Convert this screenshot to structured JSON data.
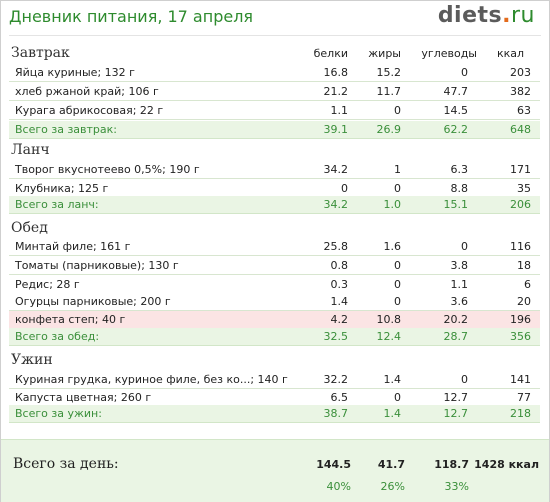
{
  "header": {
    "title": "Дневник питания, 17 апреля",
    "logo_main": "diets",
    "logo_dot": ".",
    "logo_tld": "ru"
  },
  "columns": {
    "protein": "белки",
    "fat": "жиры",
    "carbs": "углеводы",
    "kcal": "ккал"
  },
  "meals": [
    {
      "title": "Завтрак",
      "items": [
        {
          "name": "Яйца куриные; 132 г",
          "p": "16.8",
          "f": "15.2",
          "c": "0",
          "k": "203"
        },
        {
          "name": "хлеб ржаной край; 106 г",
          "p": "21.2",
          "f": "11.7",
          "c": "47.7",
          "k": "382"
        },
        {
          "name": "Курага абрикосовая; 22 г",
          "p": "1.1",
          "f": "0",
          "c": "14.5",
          "k": "63"
        }
      ],
      "total": {
        "name": "Всего за завтрак:",
        "p": "39.1",
        "f": "26.9",
        "c": "62.2",
        "k": "648"
      }
    },
    {
      "title": "Ланч",
      "items": [
        {
          "name": "Творог вкуснотеево 0,5%; 190 г",
          "p": "34.2",
          "f": "1",
          "c": "6.3",
          "k": "171"
        },
        {
          "name": "Клубника; 125 г",
          "p": "0",
          "f": "0",
          "c": "8.8",
          "k": "35"
        }
      ],
      "total": {
        "name": "Всего за ланч:",
        "p": "34.2",
        "f": "1.0",
        "c": "15.1",
        "k": "206"
      }
    },
    {
      "title": "Обед",
      "items": [
        {
          "name": "Минтай филе; 161 г",
          "p": "25.8",
          "f": "1.6",
          "c": "0",
          "k": "116"
        },
        {
          "name": "Томаты (парниковые); 130 г",
          "p": "0.8",
          "f": "0",
          "c": "3.8",
          "k": "18"
        },
        {
          "name": "Редис; 28 г",
          "p": "0.3",
          "f": "0",
          "c": "1.1",
          "k": "6"
        },
        {
          "name": "Огурцы парниковые; 200 г",
          "p": "1.4",
          "f": "0",
          "c": "3.6",
          "k": "20"
        },
        {
          "name": "конфета степ; 40 г",
          "p": "4.2",
          "f": "10.8",
          "c": "20.2",
          "k": "196"
        }
      ],
      "total": {
        "name": "Всего за обед:",
        "p": "32.5",
        "f": "12.4",
        "c": "28.7",
        "k": "356"
      }
    },
    {
      "title": "Ужин",
      "items": [
        {
          "name": "Куриная грудка, куриное филе, без ко...; 140 г",
          "p": "32.2",
          "f": "1.4",
          "c": "0",
          "k": "141"
        },
        {
          "name": "Капуста цветная; 260 г",
          "p": "6.5",
          "f": "0",
          "c": "12.7",
          "k": "77"
        }
      ],
      "total": {
        "name": "Всего за ужин:",
        "p": "38.7",
        "f": "1.4",
        "c": "12.7",
        "k": "218"
      }
    }
  ],
  "day": {
    "label": "Всего за день:",
    "p": "144.5",
    "f": "41.7",
    "c": "118.7",
    "k": "1428 ккал",
    "pp": "40%",
    "fp": "26%",
    "cp": "33%"
  },
  "colors": {
    "title": "#2e8b2e",
    "total_row": "#eaf5e4",
    "warning_row": "#fbe4e4",
    "logo_dot": "#e36b1c"
  }
}
